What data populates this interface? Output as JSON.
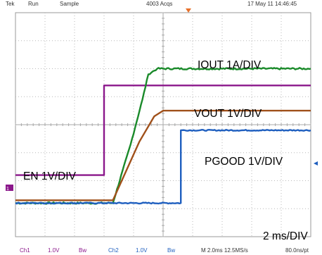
{
  "status_bar": {
    "items": [
      "Tek",
      "Run",
      "Sample",
      "4003 Acqs",
      "17 May 11 14:46:45"
    ]
  },
  "chart_data": {
    "type": "line",
    "title": "",
    "xlabel": "",
    "ylabel": "",
    "time_per_division": "2 ms/DIV",
    "horizontal_divisions": 10,
    "vertical_divisions": 8,
    "grid": true,
    "xlim": [
      0,
      10
    ],
    "ylim": [
      0,
      8
    ],
    "series": [
      {
        "key": "en",
        "name": "EN 1V/DIV",
        "color": "#8b178b",
        "points": [
          [
            0,
            2.2
          ],
          [
            3.0,
            2.2
          ],
          [
            3.0,
            5.4
          ],
          [
            10,
            5.4
          ]
        ]
      },
      {
        "key": "iout",
        "name": "IOUT 1A/DIV",
        "color": "#1a8a2a",
        "noise": 0.03,
        "points": [
          [
            0,
            1.2
          ],
          [
            3.3,
            1.2
          ],
          [
            3.9,
            3.3
          ],
          [
            4.3,
            4.9
          ],
          [
            4.5,
            5.8
          ],
          [
            4.8,
            6.0
          ],
          [
            10,
            6.0
          ]
        ]
      },
      {
        "key": "vout",
        "name": "VOUT 1V/DIV",
        "color": "#a0501a",
        "points": [
          [
            0,
            1.3
          ],
          [
            3.3,
            1.3
          ],
          [
            4.2,
            3.4
          ],
          [
            4.7,
            4.3
          ],
          [
            5.0,
            4.5
          ],
          [
            10,
            4.5
          ]
        ]
      },
      {
        "key": "pgood",
        "name": "PGOOD 1V/DIV",
        "color": "#1f5fbf",
        "noise": 0.02,
        "points": [
          [
            0,
            1.2
          ],
          [
            5.6,
            1.2
          ],
          [
            5.6,
            3.8
          ],
          [
            10,
            3.8
          ]
        ]
      }
    ]
  },
  "bottom_bar": {
    "items": [
      "Ch1",
      "1.0V",
      "Bw",
      "Ch2",
      "1.0V",
      "Bw",
      "M 2.0ms 12.5MS/s",
      "80.0ns/pt"
    ]
  }
}
